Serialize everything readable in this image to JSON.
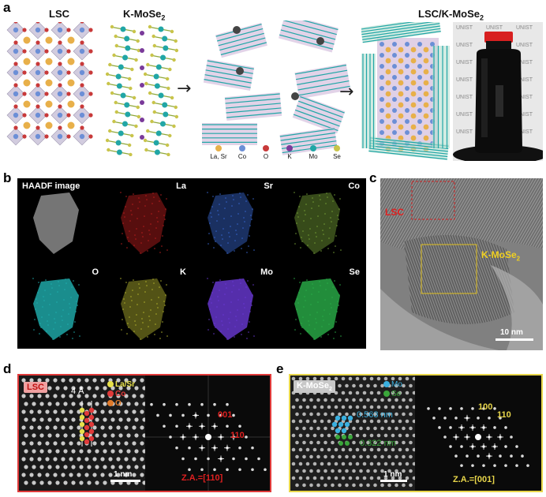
{
  "panels": {
    "a": {
      "label": "a",
      "title_lsc": "LSC",
      "title_kmose2": "K-MoSe",
      "title_kmose2_sub": "2",
      "title_composite": "LSC/K-MoSe",
      "title_composite_sub": "2",
      "legend": [
        {
          "label": "La, Sr",
          "color": "#e8b04a"
        },
        {
          "label": "Co",
          "color": "#6c8fd6"
        },
        {
          "label": "O",
          "color": "#c83a3a"
        },
        {
          "label": "K",
          "color": "#7a3a9a"
        },
        {
          "label": "Mo",
          "color": "#21a6a6"
        },
        {
          "label": "Se",
          "color": "#c9c44a"
        }
      ],
      "bottle_brand": "UNIST"
    },
    "b": {
      "label": "b",
      "tiles": [
        {
          "label": "HAADF image",
          "color": "#8a8a8a"
        },
        {
          "label": "La",
          "color": "#c02020"
        },
        {
          "label": "Sr",
          "color": "#3a6ad6"
        },
        {
          "label": "Co",
          "color": "#7aa63a"
        },
        {
          "label": "O",
          "color": "#20b0b0"
        },
        {
          "label": "K",
          "color": "#b8b830"
        },
        {
          "label": "Mo",
          "color": "#6a3ad6"
        },
        {
          "label": "Se",
          "color": "#2ab04a"
        }
      ]
    },
    "c": {
      "label": "c",
      "lsc_label": "LSC",
      "kmose2_label": "K-MoSe",
      "kmose2_sub": "2",
      "scalebar": "10 nm"
    },
    "d": {
      "label": "d",
      "badge": "LSC",
      "spacing": "4 Å",
      "legend": [
        {
          "label": "La/Sr",
          "color": "#e6e04a"
        },
        {
          "label": "Co",
          "color": "#e03a3a"
        },
        {
          "label": "O",
          "color": "#e07a2a"
        }
      ],
      "scalebar": "1 nm",
      "fft_labels": [
        "001",
        "110"
      ],
      "zone_axis": "Z.A.=[110]",
      "color": "#e03a3a"
    },
    "e": {
      "label": "e",
      "badge": "K-MoSe",
      "badge_sub": "2",
      "legend": [
        {
          "label": "Mo",
          "color": "#3ab0e0"
        },
        {
          "label": "Se",
          "color": "#3aa63a"
        }
      ],
      "spacing1": "0.563 nm",
      "spacing2": "0.322 nm",
      "scalebar": "1 nm",
      "fft_labels": [
        "100",
        "110"
      ],
      "zone_axis": "Z.A.=[001]",
      "color": "#e8d64a"
    }
  }
}
